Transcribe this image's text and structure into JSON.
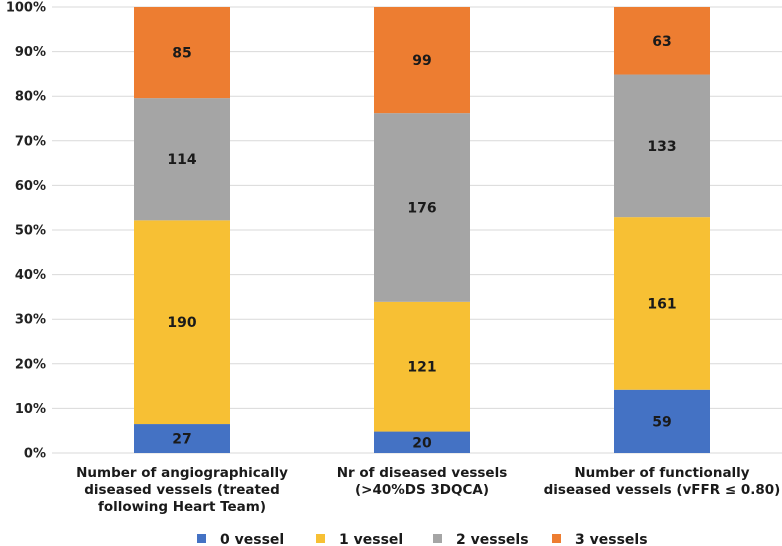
{
  "chart_data": {
    "type": "bar",
    "stacked": true,
    "normalized": true,
    "title": "",
    "xlabel": "",
    "ylabel": "",
    "ylim": [
      0,
      100
    ],
    "y_ticks": [
      "0%",
      "10%",
      "20%",
      "30%",
      "40%",
      "50%",
      "60%",
      "70%",
      "80%",
      "90%",
      "100%"
    ],
    "grid": true,
    "legend_position": "bottom",
    "categories": [
      [
        "Number of  angiographically",
        "diseased vessels  (treated",
        "following Heart Team)"
      ],
      [
        "Nr of diseased vessels",
        "(>40%DS 3DQCA)"
      ],
      [
        "Number of functionally",
        "diseased vessels (vFFR ≤ 0.80)"
      ]
    ],
    "series": [
      {
        "name": "0 vessel",
        "color": "#4472C4",
        "values": [
          27,
          20,
          59
        ]
      },
      {
        "name": "1 vessel",
        "color": "#F7C034",
        "values": [
          190,
          121,
          161
        ]
      },
      {
        "name": "2 vessels",
        "color": "#A5A5A5",
        "values": [
          114,
          176,
          133
        ]
      },
      {
        "name": "3 vessels",
        "color": "#ED7D31",
        "values": [
          85,
          99,
          63
        ]
      }
    ]
  }
}
